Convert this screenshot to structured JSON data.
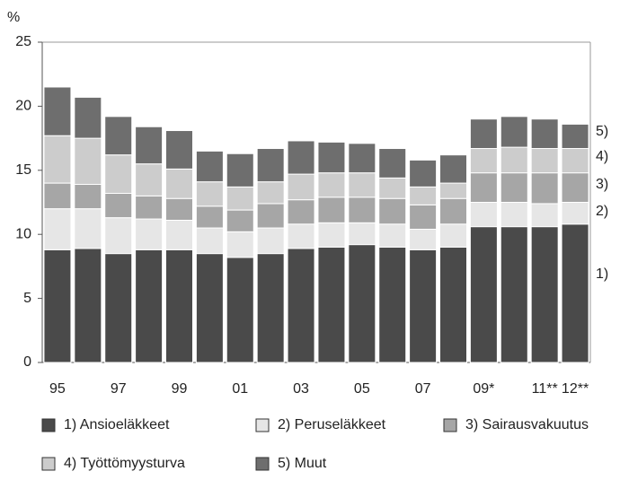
{
  "chart_data": {
    "type": "stacked_bar",
    "y_label": "%",
    "categories": [
      "95",
      null,
      "97",
      null,
      "99",
      null,
      "01",
      null,
      "03",
      null,
      "05",
      null,
      "07",
      null,
      "09*",
      null,
      "11**",
      "12**"
    ],
    "series": [
      {
        "name": "1) Ansioeläkkeet",
        "color": "#4a4a4a",
        "values": [
          8.8,
          8.9,
          8.5,
          8.8,
          8.8,
          8.5,
          8.2,
          8.5,
          8.9,
          9.0,
          9.2,
          9.0,
          8.8,
          9.0,
          10.6,
          10.6,
          10.6,
          10.8
        ]
      },
      {
        "name": "2) Peruseläkkeet",
        "color": "#e6e6e6",
        "values": [
          3.2,
          3.1,
          2.8,
          2.4,
          2.3,
          2.0,
          2.0,
          2.0,
          1.9,
          1.9,
          1.7,
          1.8,
          1.6,
          1.8,
          1.9,
          1.9,
          1.8,
          1.7
        ]
      },
      {
        "name": "3) Sairausvakuutus",
        "color": "#a6a6a6",
        "values": [
          2.0,
          1.9,
          1.9,
          1.8,
          1.7,
          1.7,
          1.7,
          1.9,
          1.9,
          2.0,
          2.0,
          2.0,
          1.9,
          2.0,
          2.3,
          2.3,
          2.4,
          2.3
        ]
      },
      {
        "name": "4) Työttömyysturva",
        "color": "#cccccc",
        "values": [
          3.7,
          3.6,
          3.0,
          2.5,
          2.3,
          1.9,
          1.8,
          1.7,
          2.0,
          1.9,
          1.9,
          1.6,
          1.4,
          1.2,
          1.9,
          2.0,
          1.9,
          1.9
        ]
      },
      {
        "name": "5) Muut",
        "color": "#6e6e6e",
        "values": [
          3.8,
          3.2,
          3.0,
          2.9,
          3.0,
          2.4,
          2.6,
          2.6,
          2.6,
          2.4,
          2.3,
          2.3,
          2.1,
          2.2,
          2.3,
          2.4,
          2.3,
          1.9
        ]
      }
    ],
    "annotations": [
      "5)",
      "4)",
      "3)",
      "2)",
      "1)"
    ],
    "ylim": [
      0,
      25
    ],
    "yticks": [
      0,
      5,
      10,
      15,
      20,
      25
    ]
  }
}
